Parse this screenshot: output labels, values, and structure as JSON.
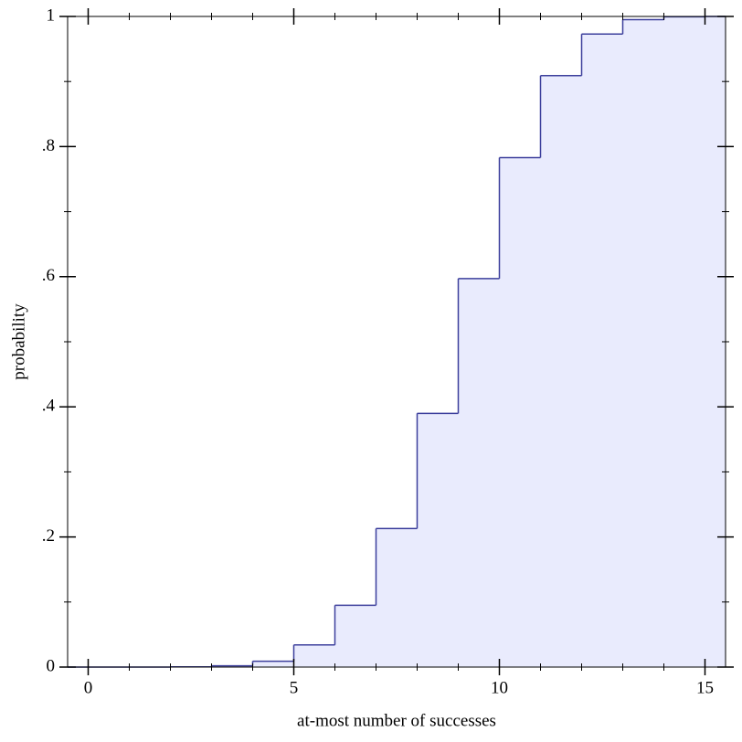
{
  "chart_data": {
    "type": "step",
    "xlabel": "at-most number of successes",
    "ylabel": "probability",
    "x": [
      0,
      1,
      2,
      3,
      4,
      5,
      6,
      7,
      8,
      9,
      10,
      11,
      12,
      13,
      14,
      15
    ],
    "series": [
      {
        "color": "#3c3f9c",
        "fill": "#e9ebfd",
        "values": [
          0,
          0,
          0.0003,
          0.002,
          0.009,
          0.034,
          0.095,
          0.213,
          0.39,
          0.597,
          0.783,
          0.909,
          0.973,
          0.995,
          0.9995,
          1
        ]
      }
    ],
    "xlim": [
      -0.5,
      15.5
    ],
    "ylim": [
      0,
      1
    ],
    "xticks": [
      0,
      5,
      10,
      15
    ],
    "xticks_minor": [
      1,
      2,
      3,
      4,
      6,
      7,
      8,
      9,
      11,
      12,
      13,
      14
    ],
    "yticks": [
      0,
      {
        "value": 0.2,
        "label": ".2"
      },
      {
        "value": 0.4,
        "label": ".4"
      },
      {
        "value": 0.6,
        "label": ".6"
      },
      {
        "value": 0.8,
        "label": ".8"
      },
      1
    ],
    "yticks_minor": [
      0.1,
      0.3,
      0.5,
      0.7,
      0.9
    ]
  }
}
